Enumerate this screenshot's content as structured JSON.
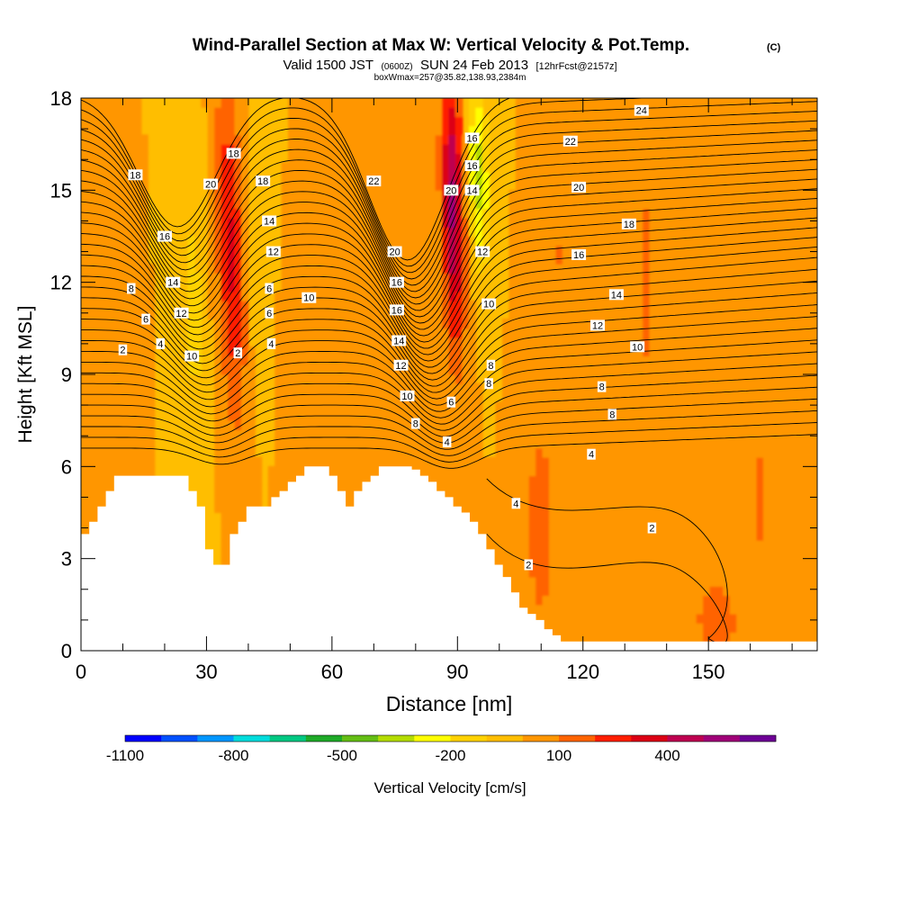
{
  "chart_data": {
    "type": "heatmap",
    "title": "Wind-Parallel Section at Max W: Vertical Velocity & Pot.Temp.",
    "title_mark": "(C)",
    "subtitle_parts": [
      "Valid 1500 JST",
      "(0600Z)",
      "SUN 24 Feb 2013",
      "[12hrFcst@2157z]"
    ],
    "info_line": "boxWmax=257@35.82,138.93,2384m",
    "xlabel": "Distance [nm]",
    "ylabel": "Height [Kft MSL]",
    "xlim": [
      0,
      176
    ],
    "ylim": [
      0,
      18
    ],
    "x_ticks": [
      "0",
      "30",
      "60",
      "90",
      "120",
      "150"
    ],
    "x_tick_values": [
      0,
      30,
      60,
      90,
      120,
      150
    ],
    "y_ticks": [
      "0",
      "3",
      "6",
      "9",
      "12",
      "15",
      "18"
    ],
    "y_tick_values": [
      0,
      3,
      6,
      9,
      12,
      15,
      18
    ],
    "colorbar": {
      "label": "Vertical Velocity [cm/s]",
      "tick_labels": [
        "-1100",
        "-800",
        "-500",
        "-200",
        "100",
        "400"
      ],
      "tick_values": [
        -1100,
        -800,
        -500,
        -200,
        100,
        400
      ],
      "levels_min": -1100,
      "levels_step": 100,
      "colors": [
        "#0000ff",
        "#0050ff",
        "#0096ff",
        "#00dcdc",
        "#00c882",
        "#1eaa28",
        "#64be14",
        "#b4dc00",
        "#ffff00",
        "#ffd200",
        "#ffbe00",
        "#ff9600",
        "#ff6400",
        "#ff1e00",
        "#dc0014",
        "#be0050",
        "#a00078",
        "#6e0096"
      ]
    },
    "field_mean_color": "#ffbe00",
    "terrain_kft": [
      3.8,
      4.2,
      4.7,
      5.2,
      5.7,
      5.7,
      5.7,
      5.7,
      5.7,
      5.7,
      5.7,
      5.7,
      5.7,
      5.2,
      4.7,
      3.3,
      2.8,
      2.8,
      3.8,
      4.2,
      4.7,
      4.7,
      4.7,
      5.0,
      5.2,
      5.5,
      5.7,
      6.0,
      6.0,
      6.0,
      5.7,
      5.2,
      4.7,
      5.2,
      5.5,
      5.7,
      6.0,
      6.0,
      6.0,
      6.0,
      5.9,
      5.7,
      5.5,
      5.2,
      5.0,
      4.7,
      4.5,
      4.2,
      3.8,
      3.3,
      2.8,
      2.4,
      1.9,
      1.4,
      1.2,
      1.0,
      0.7,
      0.5,
      0.3,
      0.3,
      0.3,
      0.3,
      0.3,
      0.3,
      0.3,
      0.3,
      0.3,
      0.3,
      0.3,
      0.3,
      0.3,
      0.3,
      0.3,
      0.3,
      0.3,
      0.3,
      0.3,
      0.3,
      0.3,
      0.3,
      0.3,
      0.3,
      0.3,
      0.3,
      0.3,
      0.3,
      0.3,
      0.3,
      0.3
    ],
    "w_features": [
      {
        "x": 36,
        "z": 13.0,
        "amp": 320,
        "sx": 3.2,
        "sz": 5.5,
        "tilt": -0.25
      },
      {
        "x": 89,
        "z": 14.5,
        "amp": 520,
        "sx": 2.6,
        "sz": 4.5,
        "tilt": -0.15
      },
      {
        "x": 95,
        "z": 15.5,
        "amp": -350,
        "sx": 2.4,
        "sz": 3.0,
        "tilt": -0.2
      },
      {
        "x": 27,
        "z": 11.0,
        "amp": -120,
        "sx": 3.0,
        "sz": 6.0,
        "tilt": -0.1
      },
      {
        "x": 42,
        "z": 14.0,
        "amp": -100,
        "sx": 3.0,
        "sz": 5.0,
        "tilt": 0.1
      },
      {
        "x": 110,
        "z": 4.0,
        "amp": 150,
        "sx": 4.0,
        "sz": 4.0,
        "tilt": 0
      },
      {
        "x": 152,
        "z": 1.0,
        "amp": 160,
        "sx": 6.0,
        "sz": 1.5,
        "tilt": 0
      },
      {
        "x": 135,
        "z": 12.0,
        "amp": 110,
        "sx": 3.0,
        "sz": 8.0,
        "tilt": 0
      },
      {
        "x": 163,
        "z": 5.0,
        "amp": 110,
        "sx": 3.0,
        "sz": 6.0,
        "tilt": 0
      },
      {
        "x": 8,
        "z": 8.0,
        "amp": 90,
        "sx": 3.0,
        "sz": 3.0,
        "tilt": 0
      },
      {
        "x": 52,
        "z": 8.0,
        "amp": 90,
        "sx": 3.0,
        "sz": 4.0,
        "tilt": 0
      },
      {
        "x": 75,
        "z": 6.5,
        "amp": 100,
        "sx": 3.0,
        "sz": 3.0,
        "tilt": 0
      },
      {
        "x": 115,
        "z": 13.0,
        "amp": 110,
        "sx": 2.0,
        "sz": 4.0,
        "tilt": 0
      }
    ],
    "theta_contour_labels": [
      {
        "x": 13,
        "z": 15.5,
        "text": "18"
      },
      {
        "x": 20,
        "z": 13.5,
        "text": "16"
      },
      {
        "x": 22,
        "z": 12.0,
        "text": "14"
      },
      {
        "x": 12,
        "z": 11.8,
        "text": "8"
      },
      {
        "x": 15.5,
        "z": 10.8,
        "text": "6"
      },
      {
        "x": 24,
        "z": 11.0,
        "text": "12"
      },
      {
        "x": 10,
        "z": 9.8,
        "text": "2"
      },
      {
        "x": 19,
        "z": 10.0,
        "text": "4"
      },
      {
        "x": 26.5,
        "z": 9.6,
        "text": "10"
      },
      {
        "x": 31,
        "z": 15.2,
        "text": "20"
      },
      {
        "x": 36.5,
        "z": 16.2,
        "text": "18"
      },
      {
        "x": 37.5,
        "z": 9.7,
        "text": "2"
      },
      {
        "x": 43.5,
        "z": 15.3,
        "text": "18"
      },
      {
        "x": 45,
        "z": 14.0,
        "text": "14"
      },
      {
        "x": 46,
        "z": 13.0,
        "text": "12"
      },
      {
        "x": 45,
        "z": 11.8,
        "text": "6"
      },
      {
        "x": 45,
        "z": 11.0,
        "text": "6"
      },
      {
        "x": 45.5,
        "z": 10.0,
        "text": "4"
      },
      {
        "x": 54.5,
        "z": 11.5,
        "text": "10"
      },
      {
        "x": 70,
        "z": 15.3,
        "text": "22"
      },
      {
        "x": 75,
        "z": 13.0,
        "text": "20"
      },
      {
        "x": 75.5,
        "z": 12.0,
        "text": "16"
      },
      {
        "x": 75.5,
        "z": 11.1,
        "text": "16"
      },
      {
        "x": 76,
        "z": 10.1,
        "text": "14"
      },
      {
        "x": 76.5,
        "z": 9.3,
        "text": "12"
      },
      {
        "x": 78,
        "z": 8.3,
        "text": "10"
      },
      {
        "x": 80,
        "z": 7.4,
        "text": "8"
      },
      {
        "x": 88.5,
        "z": 15.0,
        "text": "20"
      },
      {
        "x": 93.5,
        "z": 16.7,
        "text": "16"
      },
      {
        "x": 93.5,
        "z": 15.8,
        "text": "16"
      },
      {
        "x": 93.5,
        "z": 15.0,
        "text": "14"
      },
      {
        "x": 96,
        "z": 13.0,
        "text": "12"
      },
      {
        "x": 97.5,
        "z": 11.3,
        "text": "10"
      },
      {
        "x": 98,
        "z": 9.3,
        "text": "8"
      },
      {
        "x": 97.5,
        "z": 8.7,
        "text": "8"
      },
      {
        "x": 88.5,
        "z": 8.1,
        "text": "6"
      },
      {
        "x": 87.5,
        "z": 6.8,
        "text": "4"
      },
      {
        "x": 104,
        "z": 4.8,
        "text": "4"
      },
      {
        "x": 107,
        "z": 2.8,
        "text": "2"
      },
      {
        "x": 134,
        "z": 17.6,
        "text": "24"
      },
      {
        "x": 117,
        "z": 16.6,
        "text": "22"
      },
      {
        "x": 119,
        "z": 15.1,
        "text": "20"
      },
      {
        "x": 131,
        "z": 13.9,
        "text": "18"
      },
      {
        "x": 119,
        "z": 12.9,
        "text": "16"
      },
      {
        "x": 128,
        "z": 11.6,
        "text": "14"
      },
      {
        "x": 123.5,
        "z": 10.6,
        "text": "12"
      },
      {
        "x": 133,
        "z": 9.9,
        "text": "10"
      },
      {
        "x": 124.5,
        "z": 8.6,
        "text": "8"
      },
      {
        "x": 127,
        "z": 7.7,
        "text": "8"
      },
      {
        "x": 122,
        "z": 6.4,
        "text": "4"
      },
      {
        "x": 136.5,
        "z": 4.0,
        "text": "2"
      }
    ]
  }
}
